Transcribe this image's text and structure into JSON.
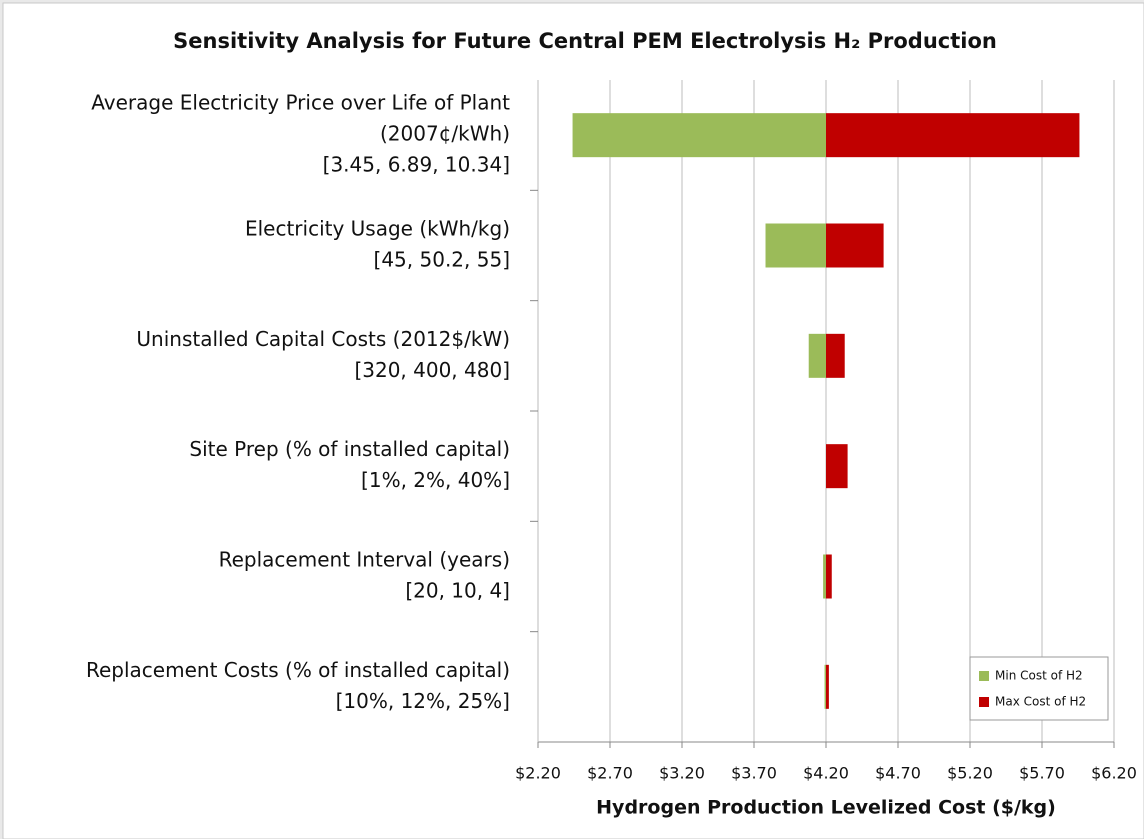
{
  "chart_data": {
    "type": "tornado",
    "title": "Sensitivity Analysis for Future Central PEM Electrolysis H₂ Production",
    "x_label": "Hydrogen Production Levelized Cost ($/kg)",
    "categories": [
      [
        "Average Electricity Price over Life of Plant",
        "(2007¢/kWh)",
        "[3.45, 6.89, 10.34]"
      ],
      [
        "Electricity Usage (kWh/kg)",
        "[45, 50.2, 55]"
      ],
      [
        "Uninstalled Capital Costs (2012$/kW)",
        "[320, 400, 480]"
      ],
      [
        "Site Prep (% of installed capital)",
        "[1%, 2%, 40%]"
      ],
      [
        "Replacement Interval (years)",
        "[20, 10, 4]"
      ],
      [
        "Replacement Costs (% of installed capital)",
        "[10%, 12%, 25%]"
      ]
    ],
    "base": 4.2,
    "series": [
      {
        "name": "Min Cost of H2",
        "color": "#9bbb59",
        "values": [
          2.44,
          3.78,
          4.08,
          4.2,
          4.18,
          4.19
        ]
      },
      {
        "name": "Max Cost of H2",
        "color": "#c00000",
        "values": [
          5.96,
          4.6,
          4.33,
          4.35,
          4.24,
          4.22
        ]
      }
    ],
    "xlim": [
      2.2,
      6.2
    ],
    "xticks": [
      {
        "value": 2.2,
        "label": "$2.20"
      },
      {
        "value": 2.7,
        "label": "$2.70"
      },
      {
        "value": 3.2,
        "label": "$3.20"
      },
      {
        "value": 3.7,
        "label": "$3.70"
      },
      {
        "value": 4.2,
        "label": "$4.20"
      },
      {
        "value": 4.7,
        "label": "$4.70"
      },
      {
        "value": 5.2,
        "label": "$5.20"
      },
      {
        "value": 5.7,
        "label": "$5.70"
      },
      {
        "value": 6.2,
        "label": "$6.20"
      }
    ],
    "grid": true,
    "legend": "lower right"
  }
}
